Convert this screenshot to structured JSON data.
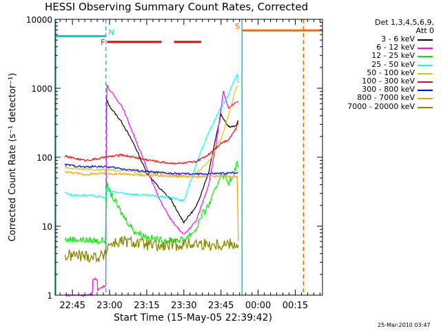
{
  "chart_data": {
    "type": "line",
    "title": "HESSI Observing Summary Count Rates, Corrected",
    "xlabel": "Start Time (15-May-05 22:39:42)",
    "ylabel": "Corrected Count Rate (s⁻¹ detector⁻¹)",
    "yscale": "log",
    "ylim": [
      1,
      10000
    ],
    "xlim_minutes": [
      -7,
      101
    ],
    "x_tick_labels": [
      "22:45",
      "23:00",
      "23:15",
      "23:30",
      "23:45",
      "00:00",
      "00:15"
    ],
    "x_tick_minutes": [
      0,
      15,
      30,
      45,
      60,
      75,
      90
    ],
    "y_tick_labels": [
      "1",
      "10",
      "100",
      "1000",
      "10000"
    ],
    "y_ticks": [
      1,
      10,
      100,
      1000,
      10000
    ],
    "legend_header": [
      "Det 1,3,4,5,6,9,",
      "Att 0"
    ],
    "legend_position": "right of plot",
    "series": [
      {
        "name": "3 - 6 keV",
        "color": "#000000",
        "x": [
          13.7,
          13.8,
          15,
          20,
          25,
          30,
          35,
          40,
          42,
          45,
          50,
          55,
          58,
          60,
          63,
          66,
          67
        ],
        "y": [
          250,
          680,
          550,
          320,
          150,
          60,
          36,
          24,
          17,
          11.5,
          19,
          60,
          200,
          420,
          280,
          280,
          340
        ]
      },
      {
        "name": "6 - 12 keV",
        "color": "#ff00ff",
        "x": [
          -3,
          8,
          8.2,
          10,
          10.2,
          13.5,
          13.8,
          14,
          15,
          20,
          25,
          30,
          35,
          40,
          45,
          50,
          55,
          58,
          61,
          63,
          66,
          67
        ],
        "y": [
          1,
          1,
          1.7,
          1.7,
          1.2,
          1.4,
          400,
          1100,
          950,
          550,
          200,
          70,
          25,
          12,
          7.5,
          12,
          40,
          150,
          900,
          500,
          640,
          650
        ]
      },
      {
        "name": "12 - 25 keV",
        "color": "#00ee00",
        "x": [
          -3,
          0,
          5,
          10,
          13.3,
          13.7,
          14,
          15,
          20,
          25,
          30,
          35,
          40,
          45,
          50,
          52,
          55,
          58,
          60,
          63,
          65,
          66.5,
          67
        ],
        "y": [
          6.3,
          6.5,
          6.3,
          6.1,
          6.2,
          25,
          40,
          32,
          15,
          8.5,
          7,
          6.3,
          6.2,
          6.4,
          9,
          14,
          20,
          35,
          60,
          44,
          50,
          90,
          70
        ]
      },
      {
        "name": "25 - 50 keV",
        "color": "#00ffff",
        "x": [
          -3,
          0,
          5,
          10,
          13.5,
          14,
          20,
          25,
          30,
          35,
          40,
          45,
          50,
          55,
          60,
          63,
          66,
          66.5,
          67
        ],
        "y": [
          31,
          28,
          28,
          27,
          26,
          33,
          30,
          29,
          28,
          27,
          26,
          23,
          80,
          230,
          520,
          800,
          1500,
          1600,
          1200
        ]
      },
      {
        "name": "50 - 100 keV",
        "color": "#cccc00",
        "x": [
          -3,
          10,
          20,
          30,
          40,
          45,
          50,
          55,
          60,
          63,
          66,
          67
        ],
        "y": [
          70,
          66,
          64,
          60,
          56,
          54,
          58,
          85,
          180,
          400,
          1000,
          1100
        ]
      },
      {
        "name": "100 - 300 keV",
        "color": "#ff0000",
        "x": [
          -3,
          5,
          10,
          15,
          20,
          25,
          30,
          35,
          40,
          45,
          50,
          55,
          60,
          63,
          66,
          67
        ],
        "y": [
          103,
          90,
          95,
          102,
          108,
          100,
          92,
          86,
          82,
          82,
          86,
          110,
          160,
          180,
          260,
          320
        ]
      },
      {
        "name": "300 - 800 keV",
        "color": "#0000ff",
        "x": [
          -3,
          5,
          10,
          15,
          20,
          30,
          40,
          50,
          60,
          67
        ],
        "y": [
          78,
          72,
          74,
          72,
          68,
          62,
          58,
          57,
          58,
          60
        ]
      },
      {
        "name": "800 - 7000 keV",
        "color": "#ff9900",
        "x": [
          -3,
          5,
          10,
          15,
          20,
          30,
          40,
          50,
          60,
          66.5,
          67
        ],
        "y": [
          62,
          56,
          58,
          58,
          57,
          55,
          53,
          52,
          53,
          52,
          6
        ]
      },
      {
        "name": "7000 - 20000 keV",
        "color": "#888800",
        "x": [
          -3,
          0,
          5,
          10,
          13.5,
          14,
          15,
          20,
          25,
          30,
          35,
          40,
          45,
          50,
          55,
          60,
          65,
          67
        ],
        "y": [
          3.6,
          3.8,
          3.7,
          3.6,
          3.8,
          5,
          5.5,
          6,
          5.8,
          5.4,
          5.0,
          5.3,
          5.5,
          5.6,
          5.4,
          5.5,
          5.6,
          5.4
        ]
      }
    ],
    "annotations": [
      {
        "label": "F",
        "color": "#ff0000",
        "x_start": 14,
        "x_end": 36,
        "y": 4700
      },
      {
        "label": "",
        "color": "#ff0000",
        "x_start": 41,
        "x_end": 52,
        "y": 4700
      },
      {
        "label": "N",
        "color": "#00cccc",
        "x_start": -7,
        "x_end": 13.5,
        "y": 5700
      },
      {
        "label": "S",
        "color": "#ff6600",
        "x_start": 68.5,
        "x_end": 101,
        "y": 6900
      }
    ],
    "vertical_markers_minutes": [
      {
        "x": 13.5,
        "color": "#00cccc",
        "style": "dashed"
      },
      {
        "x": 68.5,
        "color": "#00cccc",
        "style": "solid"
      },
      {
        "x": 93.3,
        "color": "#ff6600",
        "style": "dashed"
      }
    ]
  }
}
